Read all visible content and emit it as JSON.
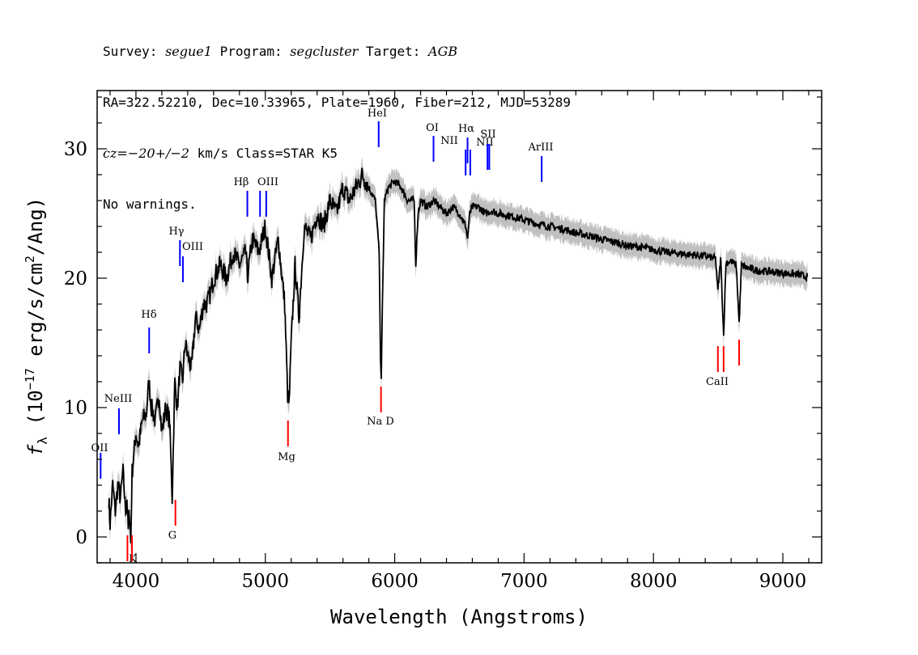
{
  "header": {
    "line1": {
      "survey_label": "Survey: ",
      "survey": "segue1",
      "program_label": " Program: ",
      "program": "segcluster",
      "target_label": " Target: ",
      "target": "AGB"
    },
    "line2": "RA=322.52210, Dec=10.33965, Plate=1960, Fiber=212, MJD=53289",
    "line3": {
      "cz_label": "cz",
      "cz_value": "=−20+/−2",
      "rest": " km/s Class=STAR K5"
    },
    "line4": "No warnings."
  },
  "chart_data": {
    "type": "line",
    "xlabel": "Wavelength (Angstroms)",
    "ylabel": "f_λ (10^-17 erg/s/cm^2/Ang)",
    "xlim": [
      3700,
      9300
    ],
    "ylim": [
      -2,
      34.5
    ],
    "xticks": [
      4000,
      5000,
      6000,
      7000,
      8000,
      9000
    ],
    "yticks": [
      0,
      10,
      20,
      30
    ],
    "grid": false,
    "series": [
      {
        "color": "#000000",
        "x": [
          3790,
          3800,
          3820,
          3840,
          3860,
          3880,
          3900,
          3920,
          3930,
          3940,
          3950,
          3960,
          3970,
          3980,
          4000,
          4020,
          4050,
          4080,
          4100,
          4120,
          4150,
          4180,
          4200,
          4230,
          4260,
          4280,
          4300,
          4320,
          4340,
          4360,
          4380,
          4400,
          4430,
          4460,
          4490,
          4520,
          4550,
          4580,
          4600,
          4650,
          4700,
          4750,
          4800,
          4850,
          4861,
          4900,
          4950,
          5000,
          5050,
          5100,
          5150,
          5172,
          5183,
          5200,
          5230,
          5260,
          5300,
          5350,
          5400,
          5450,
          5500,
          5550,
          5600,
          5650,
          5700,
          5750,
          5800,
          5850,
          5880,
          5890,
          5896,
          5905,
          5920,
          5950,
          6000,
          6050,
          6100,
          6150,
          6163,
          6180,
          6200,
          6250,
          6300,
          6350,
          6400,
          6450,
          6500,
          6550,
          6563,
          6580,
          6600,
          6650,
          6700,
          6750,
          6800,
          6900,
          7000,
          7100,
          7200,
          7300,
          7400,
          7500,
          7600,
          7700,
          7800,
          7900,
          8000,
          8100,
          8200,
          8300,
          8400,
          8450,
          8480,
          8498,
          8520,
          8542,
          8560,
          8600,
          8640,
          8662,
          8680,
          8720,
          8800,
          8900,
          9000,
          9100,
          9150,
          9190
        ],
        "values": [
          3,
          1,
          4,
          2,
          4,
          3,
          5,
          2,
          3,
          0.5,
          2,
          -0.5,
          5,
          6,
          8,
          7,
          9,
          9.5,
          12,
          10,
          9,
          11,
          8,
          10,
          9,
          3,
          12,
          10,
          13,
          12,
          15,
          14,
          13,
          17,
          16,
          18,
          18,
          19,
          20,
          21,
          20,
          22,
          21,
          22,
          20,
          23,
          22,
          24,
          20,
          23,
          18,
          11,
          10,
          15,
          21,
          17,
          24,
          23,
          25,
          24,
          26,
          25,
          27,
          26,
          27,
          28,
          27,
          26,
          22,
          14,
          12,
          18,
          26,
          27,
          27.5,
          27,
          26,
          26,
          21,
          25,
          26,
          25.5,
          26,
          25.5,
          25,
          25.5,
          25,
          24,
          23,
          25,
          25.5,
          25.5,
          25,
          25.2,
          25,
          24.8,
          24.5,
          24.2,
          24,
          23.8,
          23.5,
          23.3,
          23,
          22.8,
          22.5,
          22.4,
          22.2,
          22,
          21.9,
          21.8,
          21.7,
          21.6,
          21.5,
          19,
          21.5,
          15.5,
          21.2,
          21.3,
          21,
          16.5,
          21,
          20.8,
          20.6,
          20.5,
          20.4,
          20.3,
          20.2,
          20.1
        ]
      }
    ],
    "emission_lines": [
      {
        "name": "OII",
        "x": 3727
      },
      {
        "name": "NeIII",
        "x": 3869
      },
      {
        "name": "Hδ",
        "x": 4102
      },
      {
        "name": "Hγ",
        "x": 4340
      },
      {
        "name": "OIII",
        "x": 4363
      },
      {
        "name": "Hβ",
        "x": 4861
      },
      {
        "name": "OIII",
        "x": 4959
      },
      {
        "name": "OIII",
        "x": 5007
      },
      {
        "name": "HeI",
        "x": 5876
      },
      {
        "name": "OI",
        "x": 6300
      },
      {
        "name": "NII",
        "x": 6548
      },
      {
        "name": "Hα",
        "x": 6563
      },
      {
        "name": "NII",
        "x": 6584
      },
      {
        "name": "SII",
        "x": 6717
      },
      {
        "name": "SII",
        "x": 6731
      },
      {
        "name": "ArIII",
        "x": 7136
      }
    ],
    "absorption_lines": [
      {
        "name": "K",
        "x": 3934
      },
      {
        "name": "H",
        "x": 3969
      },
      {
        "name": "G",
        "x": 4305
      },
      {
        "name": "Mg",
        "x": 5175
      },
      {
        "name": "Na D",
        "x": 5894
      },
      {
        "name": "CaII",
        "x": 8498
      },
      {
        "name": "CaII",
        "x": 8542
      },
      {
        "name": "CaII",
        "x": 8662
      }
    ],
    "colors": {
      "spectrum": "#000000",
      "error": "#c0c0c0",
      "emission": "#0000ff",
      "absorption": "#ff0000"
    }
  }
}
